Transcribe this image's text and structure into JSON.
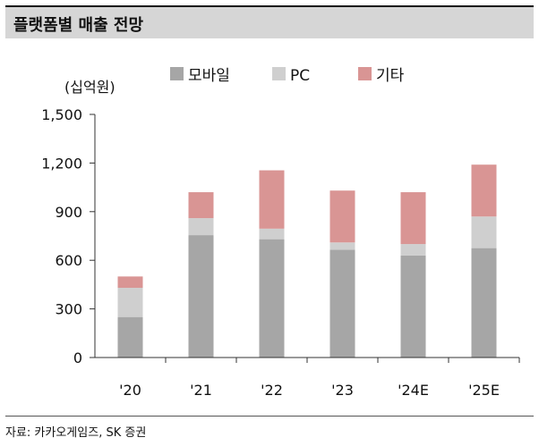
{
  "title": "플랫폼별 매출 전망",
  "source": "자료: 카카오게임즈, SK 증권",
  "colors": {
    "mobile": "#a6a6a6",
    "pc": "#cfcfcf",
    "other": "#d99594",
    "axis": "#333333"
  },
  "chart_data": {
    "type": "bar",
    "stacked": true,
    "unit_label": "(십억원)",
    "categories": [
      "'20",
      "'21",
      "'22",
      "'23",
      "'24E",
      "'25E"
    ],
    "series": [
      {
        "name": "모바일",
        "values": [
          250,
          755,
          730,
          665,
          630,
          675
        ]
      },
      {
        "name": "PC",
        "values": [
          180,
          105,
          65,
          45,
          70,
          195
        ]
      },
      {
        "name": "기타",
        "values": [
          70,
          160,
          360,
          320,
          320,
          320
        ]
      }
    ],
    "ylim": [
      0,
      1500
    ],
    "yticks": [
      "0",
      "300",
      "600",
      "900",
      "1,200",
      "1,500"
    ],
    "ytick_values": [
      0,
      300,
      600,
      900,
      1200,
      1500
    ],
    "legend_position": "top",
    "grid": false
  }
}
